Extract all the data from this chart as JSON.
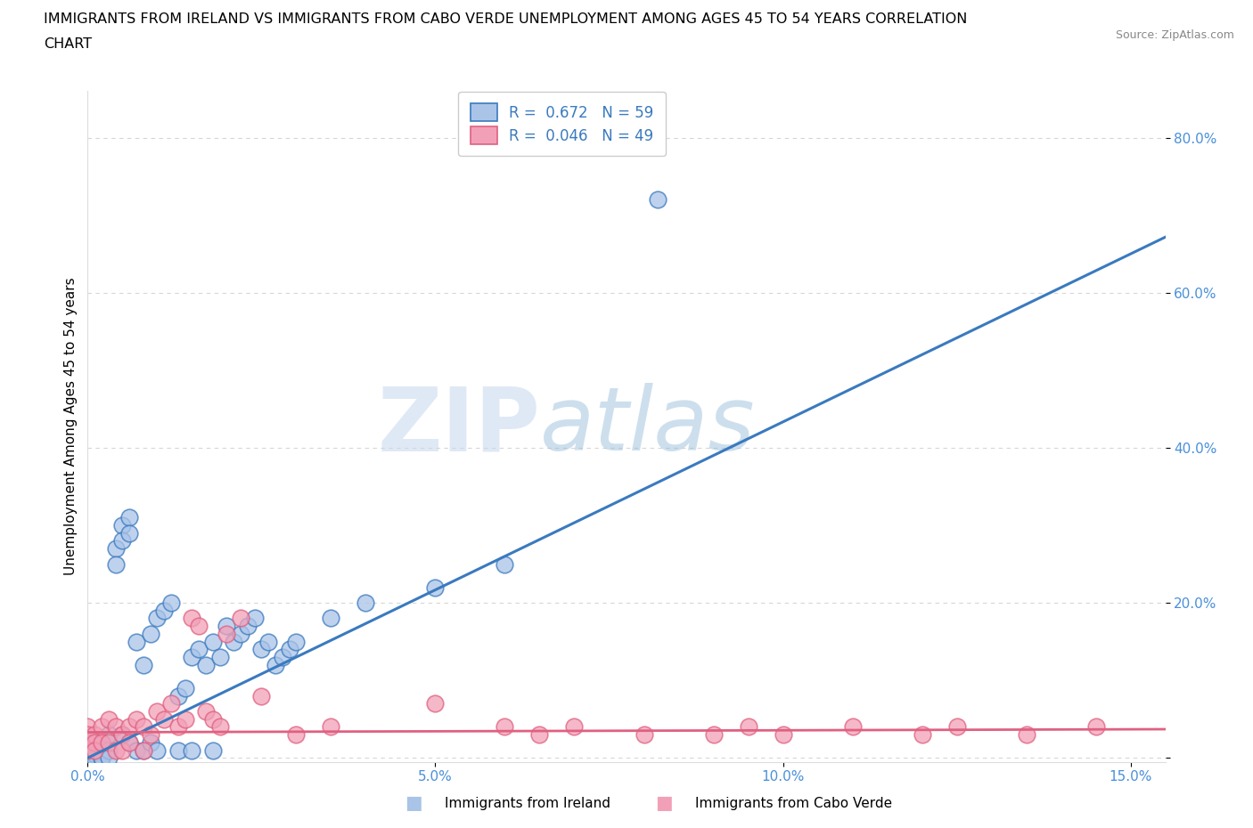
{
  "title_line1": "IMMIGRANTS FROM IRELAND VS IMMIGRANTS FROM CABO VERDE UNEMPLOYMENT AMONG AGES 45 TO 54 YEARS CORRELATION",
  "title_line2": "CHART",
  "source": "Source: ZipAtlas.com",
  "ylabel": "Unemployment Among Ages 45 to 54 years",
  "xlim": [
    0.0,
    0.155
  ],
  "ylim": [
    -0.005,
    0.86
  ],
  "xticks": [
    0.0,
    0.05,
    0.1,
    0.15
  ],
  "xticklabels": [
    "0.0%",
    "5.0%",
    "10.0%",
    "15.0%"
  ],
  "yticks": [
    0.0,
    0.2,
    0.4,
    0.6,
    0.8
  ],
  "yticklabels": [
    "",
    "20.0%",
    "40.0%",
    "60.0%",
    "80.0%"
  ],
  "ireland_color": "#aac4e8",
  "cabo_verde_color": "#f2a0b8",
  "ireland_line_color": "#3a7abf",
  "cabo_verde_line_color": "#e06080",
  "watermark_zip": "ZIP",
  "watermark_atlas": "atlas",
  "R_ireland": 0.672,
  "N_ireland": 59,
  "R_cabo": 0.046,
  "N_cabo": 49,
  "background_color": "#ffffff",
  "grid_color": "#cccccc",
  "ireland_x": [
    0.0,
    0.0,
    0.0,
    0.001,
    0.001,
    0.001,
    0.001,
    0.002,
    0.002,
    0.002,
    0.002,
    0.002,
    0.003,
    0.003,
    0.003,
    0.004,
    0.004,
    0.005,
    0.005,
    0.005,
    0.006,
    0.006,
    0.006,
    0.007,
    0.007,
    0.008,
    0.008,
    0.009,
    0.009,
    0.01,
    0.01,
    0.011,
    0.012,
    0.013,
    0.013,
    0.014,
    0.015,
    0.015,
    0.016,
    0.017,
    0.018,
    0.018,
    0.019,
    0.02,
    0.021,
    0.022,
    0.023,
    0.024,
    0.025,
    0.026,
    0.027,
    0.028,
    0.029,
    0.03,
    0.035,
    0.04,
    0.05,
    0.06,
    0.082
  ],
  "ireland_y": [
    0.01,
    0.005,
    0.0,
    0.02,
    0.01,
    0.005,
    0.0,
    0.02,
    0.01,
    0.005,
    0.0,
    0.0,
    0.03,
    0.01,
    0.0,
    0.27,
    0.25,
    0.3,
    0.28,
    0.03,
    0.31,
    0.29,
    0.02,
    0.15,
    0.01,
    0.12,
    0.01,
    0.16,
    0.02,
    0.18,
    0.01,
    0.19,
    0.2,
    0.08,
    0.01,
    0.09,
    0.13,
    0.01,
    0.14,
    0.12,
    0.15,
    0.01,
    0.13,
    0.17,
    0.15,
    0.16,
    0.17,
    0.18,
    0.14,
    0.15,
    0.12,
    0.13,
    0.14,
    0.15,
    0.18,
    0.2,
    0.22,
    0.25,
    0.72
  ],
  "cabo_x": [
    0.0,
    0.0,
    0.0,
    0.0,
    0.001,
    0.001,
    0.001,
    0.002,
    0.002,
    0.003,
    0.003,
    0.004,
    0.004,
    0.005,
    0.005,
    0.006,
    0.006,
    0.007,
    0.008,
    0.008,
    0.009,
    0.01,
    0.011,
    0.012,
    0.013,
    0.014,
    0.015,
    0.016,
    0.017,
    0.018,
    0.019,
    0.02,
    0.022,
    0.025,
    0.03,
    0.035,
    0.05,
    0.06,
    0.065,
    0.07,
    0.08,
    0.09,
    0.095,
    0.1,
    0.11,
    0.12,
    0.125,
    0.135,
    0.145
  ],
  "cabo_y": [
    0.04,
    0.03,
    0.02,
    0.01,
    0.03,
    0.02,
    0.01,
    0.04,
    0.02,
    0.05,
    0.02,
    0.04,
    0.01,
    0.03,
    0.01,
    0.04,
    0.02,
    0.05,
    0.04,
    0.01,
    0.03,
    0.06,
    0.05,
    0.07,
    0.04,
    0.05,
    0.18,
    0.17,
    0.06,
    0.05,
    0.04,
    0.16,
    0.18,
    0.08,
    0.03,
    0.04,
    0.07,
    0.04,
    0.03,
    0.04,
    0.03,
    0.03,
    0.04,
    0.03,
    0.04,
    0.03,
    0.04,
    0.03,
    0.04
  ],
  "ireland_trend": [
    0.0,
    0.04336
  ],
  "cabo_trend": [
    0.033,
    0.037
  ]
}
